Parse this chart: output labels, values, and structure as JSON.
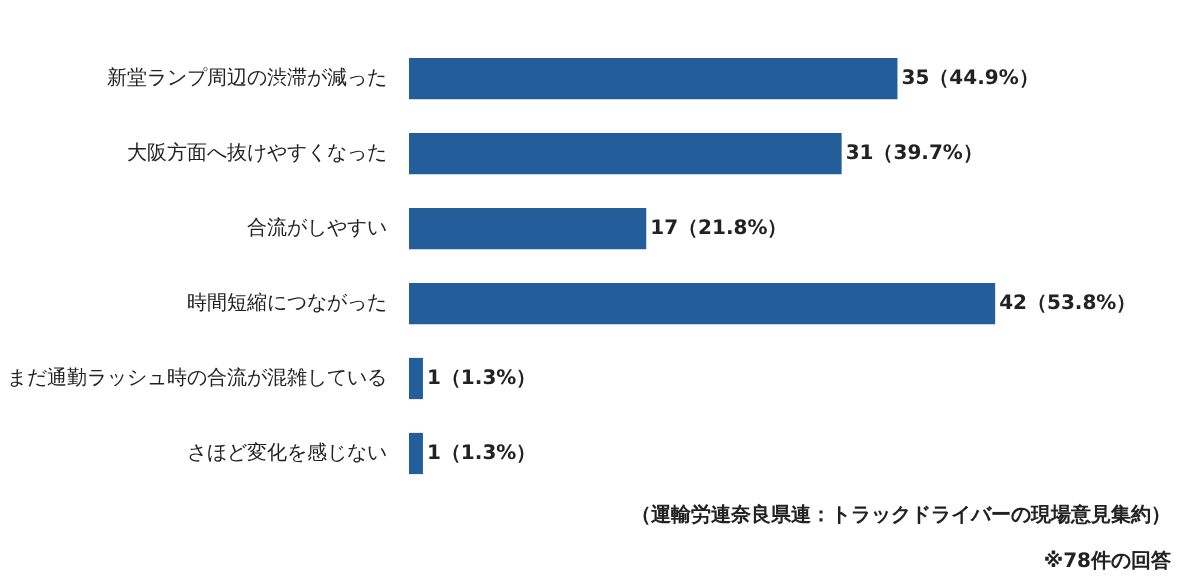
{
  "chart_data": {
    "type": "bar",
    "orientation": "horizontal",
    "categories": [
      "新堂ランプ周辺の渋滞が減った",
      "大阪方面へ抜けやすくなった",
      "合流がしやすい",
      "時間短縮につながった",
      "まだ通勤ラッシュ時の合流が混雑している",
      "さほど変化を感じない"
    ],
    "values": [
      35,
      31,
      17,
      42,
      1,
      1
    ],
    "value_labels": [
      "35（44.9%）",
      "31（39.7%）",
      "17（21.8%）",
      "42（53.8%）",
      "1（1.3%）",
      "1（1.3%）"
    ],
    "color": "#245e9a",
    "grid": false,
    "annotations": [
      "（運輸労連奈良県連：トラックドライバーの現場意見集約）",
      "※78件の回答"
    ]
  }
}
